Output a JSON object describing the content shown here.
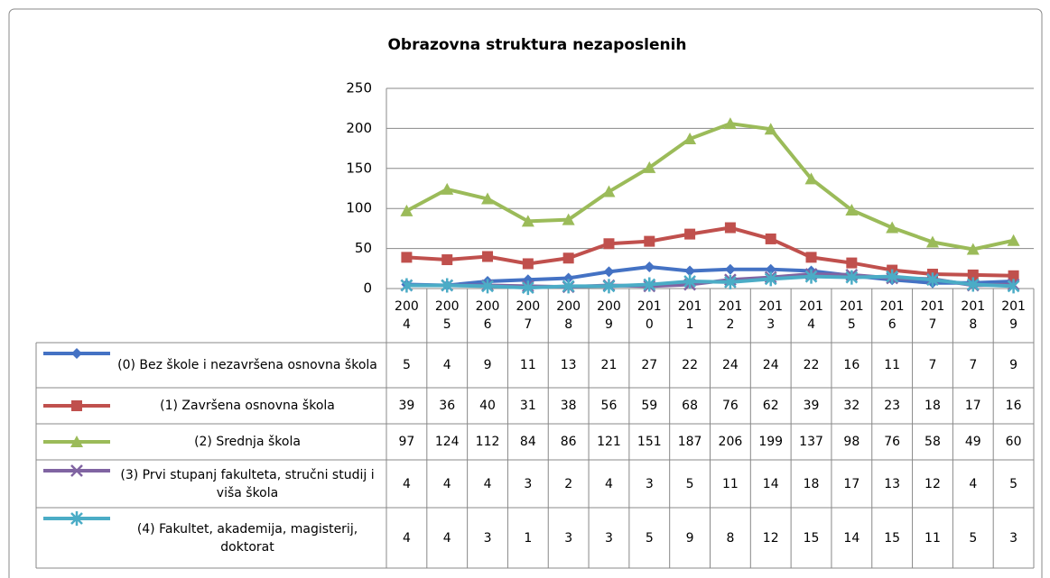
{
  "chart_data": {
    "type": "line",
    "title": "Obrazovna struktura nezaposlenih",
    "categories": [
      "2004",
      "2005",
      "2006",
      "2007",
      "2008",
      "2009",
      "2010",
      "2011",
      "2012",
      "2013",
      "2014",
      "2015",
      "2016",
      "2017",
      "2018",
      "2019"
    ],
    "ylim": [
      0,
      250
    ],
    "yticks": [
      0,
      50,
      100,
      150,
      200,
      250
    ],
    "grid": true,
    "data_table": true,
    "series": [
      {
        "name": "(0) Bez škole i nezavršena osnovna škola",
        "color": "#4472c4",
        "marker": "diamond",
        "values": [
          5,
          4,
          9,
          11,
          13,
          21,
          27,
          22,
          24,
          24,
          22,
          16,
          11,
          7,
          7,
          9
        ]
      },
      {
        "name": "(1) Završena osnovna škola",
        "color": "#c0504d",
        "marker": "square",
        "values": [
          39,
          36,
          40,
          31,
          38,
          56,
          59,
          68,
          76,
          62,
          39,
          32,
          23,
          18,
          17,
          16
        ]
      },
      {
        "name": "(2) Srednja škola",
        "color": "#9bbb59",
        "marker": "triangle",
        "values": [
          97,
          124,
          112,
          84,
          86,
          121,
          151,
          187,
          206,
          199,
          137,
          98,
          76,
          58,
          49,
          60
        ]
      },
      {
        "name": "(3) Prvi stupanj fakulteta, stručni studij i viša škola",
        "color": "#8064a2",
        "marker": "x",
        "values": [
          4,
          4,
          4,
          3,
          2,
          4,
          3,
          5,
          11,
          14,
          18,
          17,
          13,
          12,
          4,
          5
        ]
      },
      {
        "name": "(4) Fakultet, akademija, magisterij, doktorat",
        "color": "#4bacc6",
        "marker": "star",
        "values": [
          4,
          4,
          3,
          1,
          3,
          3,
          5,
          9,
          8,
          12,
          15,
          14,
          15,
          11,
          5,
          3
        ]
      }
    ]
  }
}
